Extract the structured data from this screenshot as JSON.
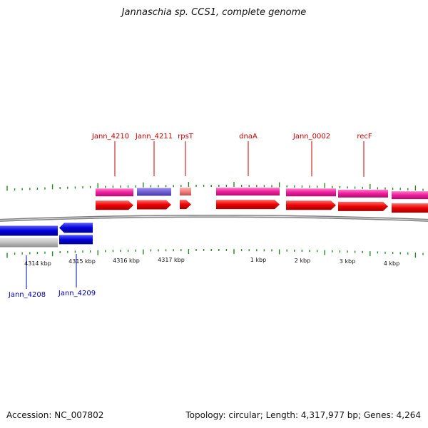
{
  "title": "Jannaschia sp. CCS1, complete genome",
  "footer": {
    "accession": "Accession: NC_007802",
    "summary": "Topology: circular; Length: 4,317,977 bp; Genes: 4,264"
  },
  "colors": {
    "forward_gene": "#ee1c9c",
    "forward_cds": "#ee0000",
    "reverse_cds": "#0000dd",
    "reverse_gene": "#c0c0c0",
    "rna": "#f08080",
    "misc_feature": "#7060d0",
    "forward_label": "#cc0000",
    "reverse_label": "#0000aa",
    "tick": "#228b22",
    "backbone": "#808080"
  },
  "scale_labels": [
    "4314 kbp",
    "4315 kbp",
    "4316 kbp",
    "4317 kbp",
    "1 kbp",
    "2 kbp",
    "3 kbp",
    "4 kbp"
  ],
  "forward_gene_labels": [
    "Jann_4210",
    "Jann_4211",
    "rpsT",
    "dnaA",
    "Jann_0002",
    "recF"
  ],
  "reverse_gene_labels": [
    "Jann_4208",
    "Jann_4209"
  ]
}
